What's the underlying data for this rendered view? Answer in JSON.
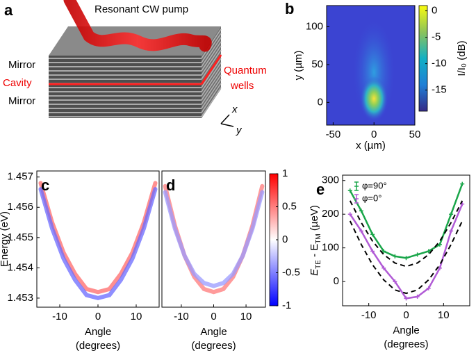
{
  "illustration": {
    "panel_label": "a",
    "pump": "Resonant CW pump",
    "mirror_top": "Mirror",
    "cavity": "Cavity",
    "mirror_bottom": "Mirror",
    "quantum_wells": [
      "Quantum",
      "wells"
    ],
    "axis_x": "x",
    "axis_y": "y"
  },
  "chart_data": [
    {
      "type": "heatmap",
      "panel_label": "b",
      "xlabel": "x (µm)",
      "ylabel": "y (µm)",
      "xlim": [
        -58,
        50
      ],
      "xticks": [
        -50,
        0,
        50
      ],
      "ylim": [
        -30,
        128
      ],
      "yticks": [
        0,
        50,
        100
      ],
      "colorbar": {
        "label": "I/I₀ (dB)",
        "lim": [
          -19,
          1
        ],
        "ticks": [
          0,
          -5,
          -10,
          -15
        ],
        "colormap": "parula"
      }
    },
    {
      "type": "line",
      "panel_label": "c",
      "xlabel": [
        "Angle",
        "(degrees)"
      ],
      "ylabel": "Energy (eV)",
      "xlim": [
        -16,
        16
      ],
      "xticks": [
        -10,
        0,
        10
      ],
      "ylim": [
        1.4527,
        1.4572
      ],
      "yticks": [
        1.453,
        1.454,
        1.455,
        1.456,
        1.457
      ],
      "x": [
        -15,
        -12,
        -9,
        -6,
        -3,
        0,
        3,
        6,
        9,
        12,
        15
      ],
      "series": [
        {
          "color": "#ff6a6a",
          "values": [
            1.4568,
            1.4555,
            1.4545,
            1.4538,
            1.4533,
            1.4532,
            1.4533,
            1.4538,
            1.4545,
            1.4555,
            1.4568
          ]
        },
        {
          "color": "#6a6aff",
          "values": [
            1.4566,
            1.4553,
            1.4543,
            1.4536,
            1.4531,
            1.453,
            1.4531,
            1.4536,
            1.4543,
            1.4553,
            1.4566
          ]
        }
      ]
    },
    {
      "type": "line",
      "panel_label": "d",
      "xlabel": [
        "Angle",
        "(degrees)"
      ],
      "xlim": [
        -16,
        16
      ],
      "xticks": [
        -10,
        0,
        10
      ],
      "ylim": [
        1.4527,
        1.4572
      ],
      "x": [
        -15,
        -12,
        -9,
        -6,
        -3,
        0,
        3,
        6,
        9,
        12,
        15
      ],
      "series": [
        {
          "color": "#ff7a7a",
          "values": [
            1.4567,
            1.4554,
            1.4544,
            1.4537,
            1.4533,
            1.4532,
            1.4533,
            1.4537,
            1.4544,
            1.4554,
            1.4567
          ]
        },
        {
          "color": "#9a9aff",
          "values": [
            1.4565,
            1.4553,
            1.4544,
            1.4538,
            1.4535,
            1.4534,
            1.4535,
            1.4538,
            1.4544,
            1.4553,
            1.4565
          ]
        }
      ],
      "colorbar": {
        "lim": [
          -1,
          1
        ],
        "ticks": [
          1,
          0.5,
          0,
          -0.5,
          -1
        ],
        "colormap": "bwr"
      }
    },
    {
      "type": "scatter",
      "panel_label": "e",
      "xlabel": [
        "Angle",
        "(degrees)"
      ],
      "ylabel": [
        "E",
        "TE",
        " - E",
        "TM",
        " (µeV)"
      ],
      "xlim": [
        -17,
        17
      ],
      "xticks": [
        -10,
        0,
        10
      ],
      "ylim": [
        -72,
        316
      ],
      "yticks": [
        0,
        100,
        200,
        300
      ],
      "x": [
        -15,
        -12,
        -9,
        -6,
        -3,
        0,
        3,
        6,
        9,
        12,
        15
      ],
      "series": [
        {
          "name": "φ=90°",
          "color": "#1aa64a",
          "values": [
            270,
            210,
            140,
            90,
            75,
            70,
            80,
            90,
            110,
            200,
            290
          ]
        },
        {
          "name": "φ=0°",
          "color": "#b15bd6",
          "values": [
            200,
            150,
            90,
            40,
            0,
            -50,
            -45,
            -20,
            40,
            150,
            230
          ]
        },
        {
          "color": "#000000",
          "dashed": true,
          "values": [
            240,
            175,
            120,
            80,
            55,
            45,
            55,
            80,
            120,
            175,
            240
          ]
        },
        {
          "color": "#000000",
          "dashed": true,
          "values": [
            180,
            110,
            50,
            5,
            -25,
            -35,
            -25,
            5,
            50,
            110,
            180
          ]
        }
      ]
    }
  ]
}
